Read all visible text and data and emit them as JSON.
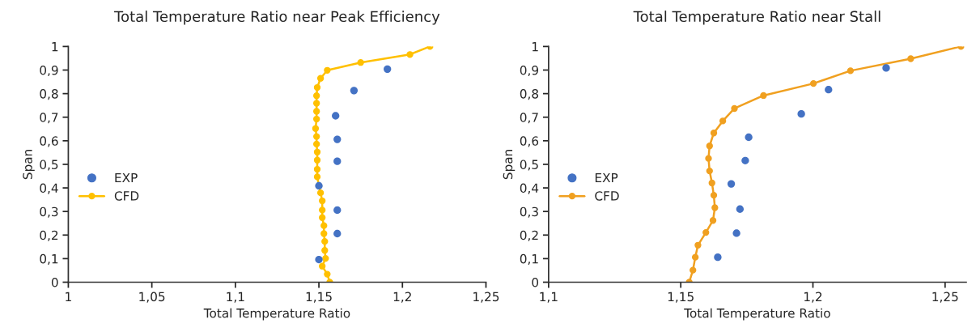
{
  "chart_data": [
    {
      "type": "line",
      "title": "Total Temperature Ratio near Peak Efficiency",
      "xlabel": "Total Temperature Ratio",
      "ylabel": "Span",
      "legend": "left",
      "grid": false,
      "xlim": [
        1,
        1.25
      ],
      "xticks": [
        1,
        {
          "value": 1.05,
          "label": "1,05"
        },
        {
          "value": 1.1,
          "label": "1,1"
        },
        {
          "value": 1.15,
          "label": "1,15"
        },
        {
          "value": 1.2,
          "label": "1,2"
        },
        {
          "value": 1.25,
          "label": "1,25"
        }
      ],
      "ylim": [
        0,
        1
      ],
      "yticks": [
        0,
        {
          "value": 0.1,
          "label": "0,1"
        },
        {
          "value": 0.2,
          "label": "0,2"
        },
        {
          "value": 0.3,
          "label": "0,3"
        },
        {
          "value": 0.4,
          "label": "0,4"
        },
        {
          "value": 0.5,
          "label": "0,5"
        },
        {
          "value": 0.6,
          "label": "0,6"
        },
        {
          "value": 0.7,
          "label": "0,7"
        },
        {
          "value": 0.8,
          "label": "0,8"
        },
        {
          "value": 0.9,
          "label": "0,9"
        },
        1
      ],
      "series": [
        {
          "name": "EXP",
          "type": "scatter",
          "marker": "circle",
          "color": "#4472c4",
          "x": [
            1.191,
            1.171,
            1.16,
            1.161,
            1.161,
            1.15,
            1.161,
            1.161,
            1.15
          ],
          "values": [
            0.904,
            0.813,
            0.706,
            0.606,
            0.513,
            0.409,
            0.306,
            0.206,
            0.096
          ]
        },
        {
          "name": "CFD",
          "marker": "circle",
          "color": "#ffc000",
          "x": [
            1.2165,
            1.2045,
            1.175,
            1.155,
            1.151,
            1.149,
            1.1486,
            1.1486,
            1.1486,
            1.1486,
            1.148,
            1.1486,
            1.1486,
            1.149,
            1.149,
            1.149,
            1.149,
            1.15,
            1.151,
            1.152,
            1.152,
            1.152,
            1.153,
            1.153,
            1.1535,
            1.1535,
            1.154,
            1.152,
            1.155,
            1.1565
          ],
          "values": [
            1.0,
            0.966,
            0.932,
            0.899,
            0.865,
            0.826,
            0.791,
            0.759,
            0.725,
            0.692,
            0.652,
            0.618,
            0.586,
            0.552,
            0.518,
            0.479,
            0.447,
            0.409,
            0.379,
            0.345,
            0.306,
            0.274,
            0.24,
            0.206,
            0.173,
            0.135,
            0.101,
            0.068,
            0.034,
            0
          ]
        }
      ]
    },
    {
      "type": "line",
      "title": "Total Temperature Ratio near Stall",
      "xlabel": "Total Temperature Ratio",
      "ylabel": "Span",
      "legend": "left",
      "grid": false,
      "xlim": [
        1.1,
        1.258
      ],
      "xticks": [
        {
          "value": 1.1,
          "label": "1,1"
        },
        {
          "value": 1.15,
          "label": "1,15"
        },
        {
          "value": 1.2,
          "label": "1,2"
        },
        {
          "value": 1.25,
          "label": "1,25"
        }
      ],
      "ylim": [
        0,
        1
      ],
      "yticks": [
        0,
        {
          "value": 0.1,
          "label": "0,1"
        },
        {
          "value": 0.2,
          "label": "0,2"
        },
        {
          "value": 0.3,
          "label": "0,3"
        },
        {
          "value": 0.4,
          "label": "0,4"
        },
        {
          "value": 0.5,
          "label": "0,5"
        },
        {
          "value": 0.6,
          "label": "0,6"
        },
        {
          "value": 0.7,
          "label": "0,7"
        },
        {
          "value": 0.8,
          "label": "0,8"
        },
        {
          "value": 0.9,
          "label": "0,9"
        },
        1
      ],
      "series": [
        {
          "name": "EXP",
          "type": "scatter",
          "marker": "circle",
          "color": "#4472c4",
          "x": [
            1.2277,
            1.2059,
            1.1956,
            1.1757,
            1.1744,
            1.1691,
            1.1724,
            1.1711,
            1.164
          ],
          "values": [
            0.909,
            0.817,
            0.714,
            0.615,
            0.516,
            0.417,
            0.31,
            0.208,
            0.106
          ]
        },
        {
          "name": "CFD",
          "marker": "circle",
          "color": "#f0a020",
          "x": [
            1.256,
            1.237,
            1.2142,
            1.2002,
            1.1813,
            1.1703,
            1.1659,
            1.1625,
            1.1609,
            1.1605,
            1.1609,
            1.1618,
            1.1625,
            1.1629,
            1.1622,
            1.1595,
            1.1565,
            1.1555,
            1.1546,
            1.1532
          ],
          "values": [
            1.0,
            0.948,
            0.897,
            0.843,
            0.792,
            0.737,
            0.684,
            0.633,
            0.578,
            0.525,
            0.472,
            0.421,
            0.369,
            0.316,
            0.262,
            0.211,
            0.157,
            0.106,
            0.051,
            0
          ]
        }
      ]
    }
  ]
}
